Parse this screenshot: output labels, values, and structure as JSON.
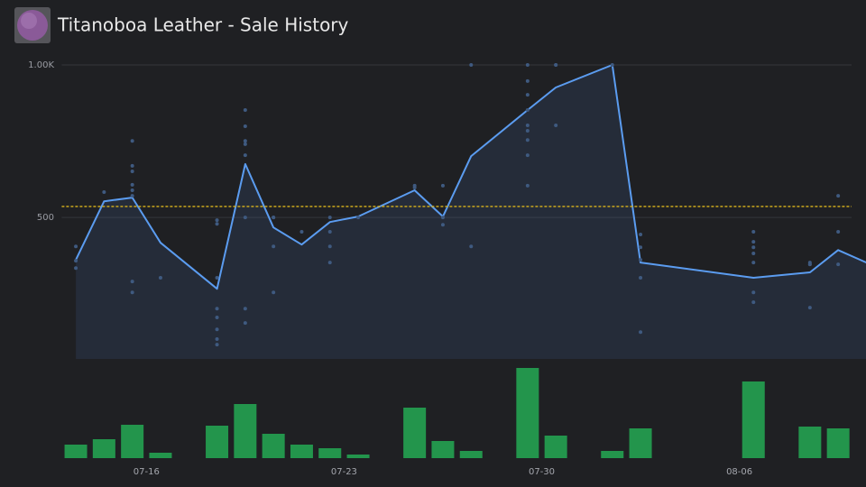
{
  "header": {
    "title": "Titanoboa Leather - Sale History"
  },
  "chart_data": {
    "type": "line",
    "xlim": [
      "07-13",
      "08-11"
    ],
    "xticks": [
      "07-16",
      "07-23",
      "07-30",
      "08-06"
    ],
    "ylim": [
      36,
      1000
    ],
    "yticks": [
      500,
      {
        "value": 1000,
        "label": "1.00K"
      }
    ],
    "y2lim": [
      0,
      100
    ],
    "grid": true,
    "average": 536,
    "average_color": "#d9b21c",
    "series": [
      {
        "type": "line",
        "color": "#5b9cf0",
        "x": [
          "07-13",
          "07-14",
          "07-15",
          "07-16",
          "07-18",
          "07-19",
          "07-20",
          "07-21",
          "07-22",
          "07-23",
          "07-25",
          "07-26",
          "07-27",
          "07-29",
          "07-30",
          "08-01",
          "08-02",
          "08-06",
          "08-08",
          "08-09",
          "08-10"
        ],
        "values": [
          361,
          553,
          565,
          417,
          266,
          675,
          467,
          411,
          485,
          503,
          589,
          503,
          701,
          852,
          926,
          1000,
          352,
          302,
          320,
          393,
          352
        ]
      },
      {
        "type": "scatter",
        "color": "#3f5a80",
        "x": [
          "07-13",
          "07-13",
          "07-13",
          "07-14",
          "07-15",
          "07-15",
          "07-15",
          "07-15",
          "07-15",
          "07-15",
          "07-15",
          "07-15",
          "07-16",
          "07-18",
          "07-18",
          "07-18",
          "07-18",
          "07-18",
          "07-18",
          "07-18",
          "07-18",
          "07-19",
          "07-19",
          "07-19",
          "07-19",
          "07-19",
          "07-19",
          "07-19",
          "07-19",
          "07-20",
          "07-20",
          "07-20",
          "07-20",
          "07-21",
          "07-22",
          "07-22",
          "07-22",
          "07-22",
          "07-23",
          "07-25",
          "07-25",
          "07-26",
          "07-26",
          "07-26",
          "07-27",
          "07-27",
          "07-29",
          "07-29",
          "07-29",
          "07-29",
          "07-29",
          "07-29",
          "07-29",
          "07-29",
          "07-29",
          "07-30",
          "07-30",
          "07-30",
          "08-01",
          "08-02",
          "08-02",
          "08-02",
          "08-02",
          "08-02",
          "08-06",
          "08-06",
          "08-06",
          "08-06",
          "08-06",
          "08-06",
          "08-06",
          "08-08",
          "08-08",
          "08-08",
          "08-08",
          "08-09",
          "08-09",
          "08-09"
        ],
        "values": [
          405,
          358,
          334,
          583,
          751,
          669,
          651,
          607,
          589,
          571,
          290,
          254,
          302,
          302,
          201,
          172,
          133,
          101,
          83,
          491,
          479,
          852,
          799,
          751,
          740,
          704,
          500,
          201,
          154,
          500,
          405,
          254,
          500,
          453,
          352,
          453,
          500,
          405,
          500,
          598,
          604,
          604,
          500,
          476,
          1000,
          405,
          902,
          802,
          1000,
          947,
          852,
          784,
          754,
          704,
          604,
          1000,
          802,
          1000,
          1000,
          444,
          302,
          402,
          361,
          124,
          402,
          382,
          453,
          420,
          352,
          254,
          222,
          346,
          352,
          346,
          204,
          453,
          346,
          571
        ]
      },
      {
        "type": "bar",
        "axis": "y2",
        "color": "#23954c",
        "x": [
          "07-13",
          "07-14",
          "07-15",
          "07-16",
          "07-18",
          "07-19",
          "07-20",
          "07-21",
          "07-22",
          "07-23",
          "07-25",
          "07-26",
          "07-27",
          "07-29",
          "07-30",
          "08-01",
          "08-02",
          "08-06",
          "08-08",
          "08-09"
        ],
        "values": [
          15,
          21,
          37,
          6,
          36,
          60,
          27,
          15,
          11,
          4,
          56,
          19,
          8,
          100,
          25,
          8,
          33,
          85,
          35,
          33
        ]
      }
    ]
  }
}
